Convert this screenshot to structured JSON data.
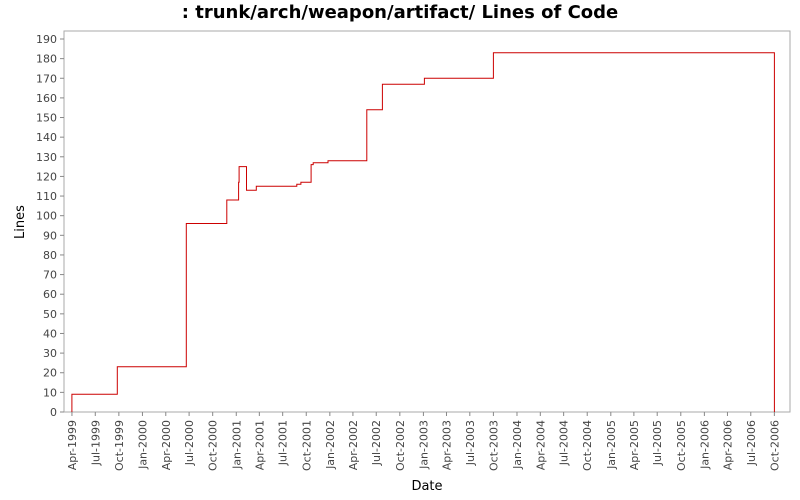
{
  "chart_data": {
    "type": "line",
    "step": true,
    "title": ": trunk/arch/weapon/artifact/ Lines of Code",
    "xlabel": "Date",
    "ylabel": "Lines",
    "ylim": [
      0,
      190
    ],
    "yticks": [
      0,
      10,
      20,
      30,
      40,
      50,
      60,
      70,
      80,
      90,
      100,
      110,
      120,
      130,
      140,
      150,
      160,
      170,
      180,
      190
    ],
    "xlim": [
      "1999-03-01",
      "2006-12-01"
    ],
    "xticks": [
      {
        "date": "1999-04-01",
        "label": "Apr-1999"
      },
      {
        "date": "1999-07-01",
        "label": "Jul-1999"
      },
      {
        "date": "1999-10-01",
        "label": "Oct-1999"
      },
      {
        "date": "2000-01-01",
        "label": "Jan-2000"
      },
      {
        "date": "2000-04-01",
        "label": "Apr-2000"
      },
      {
        "date": "2000-07-01",
        "label": "Jul-2000"
      },
      {
        "date": "2000-10-01",
        "label": "Oct-2000"
      },
      {
        "date": "2001-01-01",
        "label": "Jan-2001"
      },
      {
        "date": "2001-04-01",
        "label": "Apr-2001"
      },
      {
        "date": "2001-07-01",
        "label": "Jul-2001"
      },
      {
        "date": "2001-10-01",
        "label": "Oct-2001"
      },
      {
        "date": "2002-01-01",
        "label": "Jan-2002"
      },
      {
        "date": "2002-04-01",
        "label": "Apr-2002"
      },
      {
        "date": "2002-07-01",
        "label": "Jul-2002"
      },
      {
        "date": "2002-10-01",
        "label": "Oct-2002"
      },
      {
        "date": "2003-01-01",
        "label": "Jan-2003"
      },
      {
        "date": "2003-04-01",
        "label": "Apr-2003"
      },
      {
        "date": "2003-07-01",
        "label": "Jul-2003"
      },
      {
        "date": "2003-10-01",
        "label": "Oct-2003"
      },
      {
        "date": "2004-01-01",
        "label": "Jan-2004"
      },
      {
        "date": "2004-04-01",
        "label": "Apr-2004"
      },
      {
        "date": "2004-07-01",
        "label": "Jul-2004"
      },
      {
        "date": "2004-10-01",
        "label": "Oct-2004"
      },
      {
        "date": "2005-01-01",
        "label": "Jan-2005"
      },
      {
        "date": "2005-04-01",
        "label": "Apr-2005"
      },
      {
        "date": "2005-07-01",
        "label": "Jul-2005"
      },
      {
        "date": "2005-10-01",
        "label": "Oct-2005"
      },
      {
        "date": "2006-01-01",
        "label": "Jan-2006"
      },
      {
        "date": "2006-04-01",
        "label": "Apr-2006"
      },
      {
        "date": "2006-07-01",
        "label": "Jul-2006"
      },
      {
        "date": "2006-10-01",
        "label": "Oct-2006"
      }
    ],
    "grid": false,
    "series": [
      {
        "color": "#cc0000",
        "points": [
          {
            "x": "1999-04-01",
            "y": 0
          },
          {
            "x": "1999-04-01",
            "y": 9
          },
          {
            "x": "1999-09-25",
            "y": 23
          },
          {
            "x": "2000-06-20",
            "y": 96
          },
          {
            "x": "2000-11-25",
            "y": 108
          },
          {
            "x": "2001-01-10",
            "y": 117
          },
          {
            "x": "2001-01-12",
            "y": 125
          },
          {
            "x": "2001-02-10",
            "y": 113
          },
          {
            "x": "2001-03-20",
            "y": 115
          },
          {
            "x": "2001-08-25",
            "y": 116
          },
          {
            "x": "2001-09-10",
            "y": 117
          },
          {
            "x": "2001-10-20",
            "y": 126
          },
          {
            "x": "2001-10-28",
            "y": 127
          },
          {
            "x": "2001-12-25",
            "y": 128
          },
          {
            "x": "2002-05-25",
            "y": 154
          },
          {
            "x": "2002-07-25",
            "y": 167
          },
          {
            "x": "2003-01-05",
            "y": 170
          },
          {
            "x": "2003-10-01",
            "y": 183
          },
          {
            "x": "2006-10-01",
            "y": 0
          }
        ]
      }
    ]
  },
  "colors": {
    "line": "#cc0000",
    "axis": "#888888",
    "frame": "#aaaaaa"
  }
}
